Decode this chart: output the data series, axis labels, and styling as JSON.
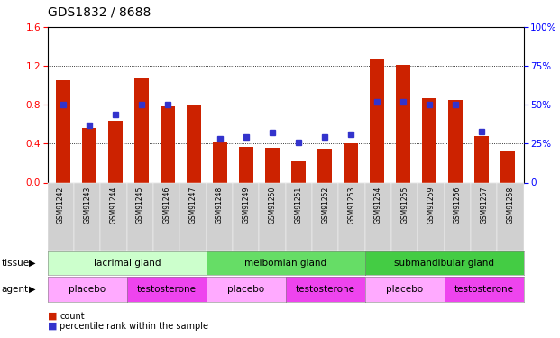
{
  "title": "GDS1832 / 8688",
  "samples": [
    "GSM91242",
    "GSM91243",
    "GSM91244",
    "GSM91245",
    "GSM91246",
    "GSM91247",
    "GSM91248",
    "GSM91249",
    "GSM91250",
    "GSM91251",
    "GSM91252",
    "GSM91253",
    "GSM91254",
    "GSM91255",
    "GSM91259",
    "GSM91256",
    "GSM91257",
    "GSM91258"
  ],
  "counts": [
    1.05,
    0.56,
    0.64,
    1.07,
    0.78,
    0.8,
    0.42,
    0.37,
    0.36,
    0.22,
    0.35,
    0.4,
    1.28,
    1.21,
    0.87,
    0.85,
    0.48,
    0.33
  ],
  "percentiles": [
    50,
    37,
    44,
    50,
    50,
    null,
    28,
    29,
    32,
    26,
    29,
    31,
    52,
    52,
    50,
    50,
    33,
    null
  ],
  "bar_color": "#cc2200",
  "dot_color": "#3333cc",
  "ylim_left": [
    0,
    1.6
  ],
  "ylim_right": [
    0,
    100
  ],
  "yticks_left": [
    0,
    0.4,
    0.8,
    1.2,
    1.6
  ],
  "yticks_right": [
    0,
    25,
    50,
    75,
    100
  ],
  "tissue_groups": [
    {
      "label": "lacrimal gland",
      "start": 0,
      "end": 6,
      "color": "#ccffcc"
    },
    {
      "label": "meibomian gland",
      "start": 6,
      "end": 12,
      "color": "#66dd66"
    },
    {
      "label": "submandibular gland",
      "start": 12,
      "end": 18,
      "color": "#44cc44"
    }
  ],
  "agent_groups": [
    {
      "label": "placebo",
      "start": 0,
      "end": 3,
      "color": "#ffaaff"
    },
    {
      "label": "testosterone",
      "start": 3,
      "end": 6,
      "color": "#ee44ee"
    },
    {
      "label": "placebo",
      "start": 6,
      "end": 9,
      "color": "#ffaaff"
    },
    {
      "label": "testosterone",
      "start": 9,
      "end": 12,
      "color": "#ee44ee"
    },
    {
      "label": "placebo",
      "start": 12,
      "end": 15,
      "color": "#ffaaff"
    },
    {
      "label": "testosterone",
      "start": 15,
      "end": 18,
      "color": "#ee44ee"
    }
  ],
  "legend_count_color": "#cc2200",
  "legend_dot_color": "#3333cc",
  "xtick_bg": "#d0d0d0",
  "plot_bg": "#ffffff",
  "fig_bg": "#ffffff"
}
